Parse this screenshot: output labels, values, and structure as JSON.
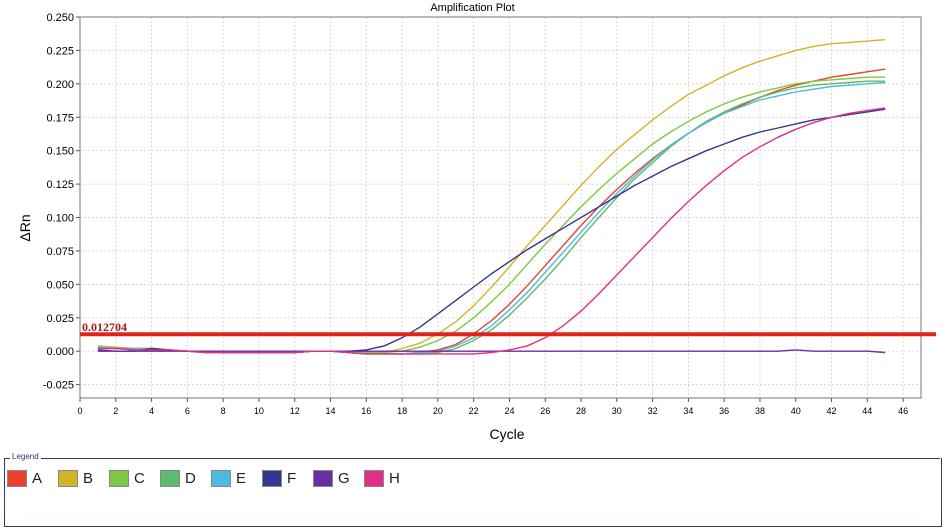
{
  "chart_data": {
    "type": "line",
    "title": "Amplification Plot",
    "xlabel": "Cycle",
    "ylabel": "ΔRn",
    "xlim": [
      0,
      47
    ],
    "ylim": [
      -0.035,
      0.25
    ],
    "xticks": [
      "0",
      "2",
      "4",
      "6",
      "8",
      "10",
      "12",
      "14",
      "16",
      "18",
      "20",
      "22",
      "24",
      "26",
      "28",
      "30",
      "32",
      "34",
      "36",
      "38",
      "40",
      "42",
      "44",
      "46"
    ],
    "yticks": [
      "0.250",
      "0.225",
      "0.200",
      "0.175",
      "0.150",
      "0.125",
      "0.100",
      "0.075",
      "0.050",
      "0.025",
      "0.000",
      "-0.025"
    ],
    "grid": true,
    "threshold": {
      "label": "0.012704",
      "value": 0.012704,
      "color": "#e2231a"
    },
    "x": [
      1,
      2,
      3,
      4,
      5,
      6,
      7,
      8,
      9,
      10,
      11,
      12,
      13,
      14,
      15,
      16,
      17,
      18,
      19,
      20,
      21,
      22,
      23,
      24,
      25,
      26,
      27,
      28,
      29,
      30,
      31,
      32,
      33,
      34,
      35,
      36,
      37,
      38,
      39,
      40,
      41,
      42,
      43,
      44,
      45
    ],
    "series": [
      {
        "name": "A",
        "color": "#e8432e",
        "values": [
          0.003,
          0.002,
          0.001,
          0.002,
          0.001,
          0,
          -0.001,
          -0.001,
          -0.001,
          -0.001,
          -0.001,
          -0.001,
          0,
          0,
          -0.001,
          -0.002,
          -0.002,
          -0.002,
          -0.001,
          0.001,
          0.005,
          0.013,
          0.023,
          0.035,
          0.049,
          0.064,
          0.079,
          0.094,
          0.108,
          0.121,
          0.133,
          0.144,
          0.154,
          0.163,
          0.171,
          0.178,
          0.184,
          0.19,
          0.195,
          0.199,
          0.202,
          0.205,
          0.207,
          0.209,
          0.211
        ]
      },
      {
        "name": "B",
        "color": "#d4b427",
        "values": [
          0.004,
          0.003,
          0.002,
          0.001,
          0.001,
          0,
          0,
          -0.001,
          -0.001,
          -0.001,
          -0.001,
          -0.001,
          0,
          0,
          0,
          -0.001,
          -0.001,
          0.002,
          0.006,
          0.013,
          0.022,
          0.034,
          0.048,
          0.063,
          0.079,
          0.094,
          0.109,
          0.124,
          0.138,
          0.151,
          0.162,
          0.173,
          0.183,
          0.192,
          0.199,
          0.206,
          0.212,
          0.217,
          0.221,
          0.225,
          0.228,
          0.23,
          0.231,
          0.232,
          0.233
        ]
      },
      {
        "name": "C",
        "color": "#7ec843",
        "values": [
          0.003,
          0.002,
          0.002,
          0.002,
          0.001,
          0,
          0,
          -0.001,
          -0.001,
          -0.001,
          -0.001,
          -0.001,
          0,
          0,
          -0.001,
          -0.001,
          -0.001,
          0,
          0.003,
          0.008,
          0.015,
          0.025,
          0.037,
          0.05,
          0.065,
          0.08,
          0.094,
          0.108,
          0.121,
          0.133,
          0.144,
          0.155,
          0.164,
          0.172,
          0.179,
          0.185,
          0.19,
          0.194,
          0.197,
          0.2,
          0.202,
          0.203,
          0.204,
          0.205,
          0.205
        ]
      },
      {
        "name": "D",
        "color": "#5cbc6e",
        "values": [
          0.003,
          0.002,
          0.002,
          0.002,
          0.001,
          0,
          -0.001,
          -0.001,
          -0.001,
          -0.001,
          -0.001,
          -0.001,
          0,
          0,
          -0.001,
          -0.002,
          -0.002,
          -0.002,
          -0.002,
          -0.001,
          0.002,
          0.008,
          0.016,
          0.027,
          0.04,
          0.054,
          0.069,
          0.085,
          0.1,
          0.115,
          0.129,
          0.141,
          0.153,
          0.163,
          0.172,
          0.179,
          0.185,
          0.19,
          0.194,
          0.197,
          0.199,
          0.2,
          0.201,
          0.202,
          0.202
        ]
      },
      {
        "name": "E",
        "color": "#4ebadd",
        "values": [
          0.003,
          0.002,
          0.002,
          0.001,
          0.001,
          0,
          0,
          -0.001,
          -0.001,
          -0.001,
          -0.001,
          0,
          0,
          0,
          -0.001,
          -0.002,
          -0.002,
          -0.002,
          -0.001,
          0,
          0.004,
          0.01,
          0.019,
          0.031,
          0.044,
          0.059,
          0.074,
          0.089,
          0.104,
          0.118,
          0.131,
          0.143,
          0.154,
          0.163,
          0.171,
          0.178,
          0.183,
          0.188,
          0.191,
          0.194,
          0.196,
          0.198,
          0.199,
          0.2,
          0.201
        ]
      },
      {
        "name": "F",
        "color": "#35368f",
        "values": [
          0.001,
          0,
          0,
          0.002,
          0.001,
          0,
          0,
          -0.001,
          -0.001,
          -0.001,
          -0.001,
          -0.001,
          0,
          0,
          0,
          0.001,
          0.004,
          0.01,
          0.018,
          0.028,
          0.038,
          0.048,
          0.058,
          0.067,
          0.076,
          0.084,
          0.092,
          0.1,
          0.108,
          0.116,
          0.124,
          0.131,
          0.138,
          0.144,
          0.15,
          0.155,
          0.16,
          0.164,
          0.167,
          0.17,
          0.173,
          0.175,
          0.177,
          0.179,
          0.181
        ]
      },
      {
        "name": "G",
        "color": "#6a2ea0",
        "values": [
          0,
          0,
          0,
          0,
          0,
          0,
          0,
          0,
          0,
          0,
          0,
          0,
          0,
          0,
          0,
          0,
          0,
          0,
          0,
          0,
          0,
          0,
          0,
          0,
          0,
          0,
          0,
          0,
          0,
          0,
          0,
          0,
          0,
          0,
          0,
          0,
          0,
          0,
          0,
          0.001,
          0,
          0,
          0,
          0,
          -0.001
        ]
      },
      {
        "name": "H",
        "color": "#e0308a",
        "values": [
          0.002,
          0.002,
          0.001,
          0.001,
          0.001,
          0,
          -0.001,
          -0.001,
          -0.001,
          -0.001,
          -0.001,
          -0.001,
          0,
          0,
          -0.001,
          -0.002,
          -0.002,
          -0.002,
          -0.002,
          -0.002,
          -0.002,
          -0.002,
          -0.001,
          0.001,
          0.004,
          0.01,
          0.019,
          0.03,
          0.043,
          0.057,
          0.071,
          0.085,
          0.099,
          0.112,
          0.124,
          0.135,
          0.145,
          0.153,
          0.16,
          0.166,
          0.171,
          0.175,
          0.178,
          0.18,
          0.182
        ]
      }
    ],
    "legend": {
      "title": "Legend",
      "position": "bottom"
    }
  }
}
